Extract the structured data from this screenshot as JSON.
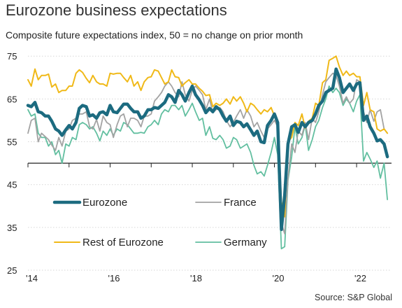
{
  "header": {
    "title": "Eurozone business expectations",
    "subtitle": "Composite future expectations index, 50 = no change on prior month",
    "source": "Source: S&P Global"
  },
  "chart_data": {
    "type": "line",
    "title": "Eurozone business expectations",
    "subtitle": "Composite future expectations index, 50 = no change on prior month",
    "xlabel": "",
    "ylabel": "",
    "x_tick_labels": [
      "'14",
      "'16",
      "'18",
      "'20",
      "'22"
    ],
    "x_tick_years": [
      2014,
      2016,
      2018,
      2020,
      2022
    ],
    "y_tick_labels": [
      "25",
      "35",
      "45",
      "55",
      "65",
      "75"
    ],
    "y_ticks": [
      25,
      35,
      45,
      55,
      65,
      75
    ],
    "ylim": [
      25,
      77
    ],
    "xlim": [
      2014.0,
      2022.85
    ],
    "baseline": 50,
    "grid": "horizontal dotted",
    "legend_position": "lower-left inside plot",
    "series": [
      {
        "name": "Eurozone",
        "color": "#1c6b80",
        "width": 4.5,
        "x": [
          2014.0,
          2014.08,
          2014.17,
          2014.25,
          2014.33,
          2014.42,
          2014.5,
          2014.58,
          2014.67,
          2014.75,
          2014.83,
          2014.92,
          2015.0,
          2015.08,
          2015.17,
          2015.25,
          2015.33,
          2015.42,
          2015.5,
          2015.58,
          2015.67,
          2015.75,
          2015.83,
          2015.92,
          2016.0,
          2016.08,
          2016.17,
          2016.25,
          2016.33,
          2016.42,
          2016.5,
          2016.58,
          2016.67,
          2016.75,
          2016.83,
          2016.92,
          2017.0,
          2017.08,
          2017.17,
          2017.25,
          2017.33,
          2017.42,
          2017.5,
          2017.58,
          2017.67,
          2017.75,
          2017.83,
          2017.92,
          2018.0,
          2018.08,
          2018.17,
          2018.25,
          2018.33,
          2018.42,
          2018.5,
          2018.58,
          2018.67,
          2018.75,
          2018.83,
          2018.92,
          2019.0,
          2019.08,
          2019.17,
          2019.25,
          2019.33,
          2019.42,
          2019.5,
          2019.58,
          2019.67,
          2019.75,
          2019.83,
          2019.92,
          2020.0,
          2020.08,
          2020.17,
          2020.25,
          2020.33,
          2020.42,
          2020.5,
          2020.58,
          2020.67,
          2020.75,
          2020.83,
          2020.92,
          2021.0,
          2021.08,
          2021.17,
          2021.25,
          2021.33,
          2021.42,
          2021.5,
          2021.58,
          2021.67,
          2021.75,
          2021.83,
          2021.92,
          2022.0,
          2022.08,
          2022.17,
          2022.25,
          2022.33,
          2022.42,
          2022.5,
          2022.58,
          2022.67,
          2022.75
        ],
        "values": [
          63.5,
          63.2,
          64.2,
          62.0,
          61.8,
          61.0,
          61.0,
          59.8,
          58.0,
          57.5,
          56.5,
          57.8,
          58.8,
          58.0,
          59.5,
          62.8,
          63.5,
          63.2,
          61.0,
          61.3,
          60.5,
          61.8,
          62.0,
          61.3,
          63.5,
          62.0,
          61.8,
          62.8,
          63.8,
          63.8,
          62.8,
          62.0,
          62.0,
          60.5,
          61.0,
          62.5,
          62.5,
          63.0,
          62.8,
          63.5,
          64.2,
          66.0,
          65.5,
          64.2,
          67.0,
          66.0,
          64.5,
          66.5,
          68.0,
          66.0,
          64.8,
          63.5,
          61.8,
          62.8,
          62.0,
          63.2,
          62.5,
          61.0,
          59.8,
          61.0,
          58.8,
          59.8,
          59.5,
          58.5,
          59.2,
          57.8,
          56.5,
          57.5,
          55.0,
          54.8,
          58.8,
          60.0,
          61.5,
          59.5,
          34.5,
          42.5,
          54.5,
          58.5,
          59.0,
          57.2,
          59.5,
          58.5,
          59.5,
          60.0,
          61.5,
          63.5,
          64.5,
          66.5,
          67.0,
          67.5,
          72.0,
          70.0,
          66.5,
          67.5,
          68.5,
          67.0,
          68.5,
          68.8,
          60.0,
          61.0,
          58.5,
          57.0,
          55.2,
          55.5,
          54.5,
          51.5
        ]
      },
      {
        "name": "France",
        "color": "#a3a3a3",
        "width": 1.8,
        "x": [
          2014.0,
          2014.08,
          2014.17,
          2014.25,
          2014.33,
          2014.42,
          2014.5,
          2014.58,
          2014.67,
          2014.75,
          2014.83,
          2014.92,
          2015.0,
          2015.08,
          2015.17,
          2015.25,
          2015.33,
          2015.42,
          2015.5,
          2015.58,
          2015.67,
          2015.75,
          2015.83,
          2015.92,
          2016.0,
          2016.08,
          2016.17,
          2016.25,
          2016.33,
          2016.42,
          2016.5,
          2016.58,
          2016.67,
          2016.75,
          2016.83,
          2016.92,
          2017.0,
          2017.08,
          2017.17,
          2017.25,
          2017.33,
          2017.42,
          2017.5,
          2017.58,
          2017.67,
          2017.75,
          2017.83,
          2017.92,
          2018.0,
          2018.08,
          2018.17,
          2018.25,
          2018.33,
          2018.42,
          2018.5,
          2018.58,
          2018.67,
          2018.75,
          2018.83,
          2018.92,
          2019.0,
          2019.08,
          2019.17,
          2019.25,
          2019.33,
          2019.42,
          2019.5,
          2019.58,
          2019.67,
          2019.75,
          2019.83,
          2019.92,
          2020.0,
          2020.08,
          2020.17,
          2020.25,
          2020.33,
          2020.42,
          2020.5,
          2020.58,
          2020.67,
          2020.75,
          2020.83,
          2020.92,
          2021.0,
          2021.08,
          2021.17,
          2021.25,
          2021.33,
          2021.42,
          2021.5,
          2021.58,
          2021.67,
          2021.75,
          2021.83,
          2021.92,
          2022.0,
          2022.08,
          2022.17,
          2022.25,
          2022.33,
          2022.42,
          2022.5,
          2022.58,
          2022.67,
          2022.75
        ],
        "values": [
          57.0,
          60.0,
          60.5,
          55.0,
          57.0,
          56.2,
          55.5,
          54.2,
          53.0,
          56.0,
          54.0,
          57.5,
          58.0,
          60.0,
          60.5,
          61.5,
          61.5,
          62.0,
          58.5,
          58.0,
          60.2,
          57.5,
          61.0,
          59.5,
          59.0,
          56.0,
          59.0,
          61.0,
          61.5,
          58.5,
          60.5,
          60.5,
          60.0,
          58.5,
          61.0,
          61.0,
          61.5,
          64.5,
          65.5,
          66.5,
          68.0,
          69.0,
          68.0,
          66.5,
          65.5,
          69.0,
          66.0,
          64.5,
          67.0,
          68.0,
          67.0,
          66.0,
          62.5,
          65.0,
          61.8,
          62.5,
          63.0,
          62.0,
          60.0,
          58.5,
          59.5,
          61.0,
          62.5,
          60.5,
          62.5,
          61.0,
          58.5,
          59.5,
          57.5,
          56.0,
          58.0,
          59.0,
          60.0,
          58.5,
          36.0,
          33.5,
          46.5,
          54.5,
          52.5,
          57.5,
          56.5,
          59.5,
          55.5,
          60.5,
          59.5,
          62.0,
          66.0,
          69.0,
          70.0,
          71.0,
          70.5,
          68.0,
          64.0,
          65.5,
          64.0,
          65.0,
          69.5,
          69.0,
          62.0,
          59.5,
          62.5,
          59.8,
          62.0,
          62.5,
          58.0,
          57.0
        ]
      },
      {
        "name": "Rest of Eurozone",
        "color": "#f0b918",
        "width": 2.0,
        "x": [
          2014.0,
          2014.08,
          2014.17,
          2014.25,
          2014.33,
          2014.42,
          2014.5,
          2014.58,
          2014.67,
          2014.75,
          2014.83,
          2014.92,
          2015.0,
          2015.08,
          2015.17,
          2015.25,
          2015.33,
          2015.42,
          2015.5,
          2015.58,
          2015.67,
          2015.75,
          2015.83,
          2015.92,
          2016.0,
          2016.08,
          2016.17,
          2016.25,
          2016.33,
          2016.42,
          2016.5,
          2016.58,
          2016.67,
          2016.75,
          2016.83,
          2016.92,
          2017.0,
          2017.08,
          2017.17,
          2017.25,
          2017.33,
          2017.42,
          2017.5,
          2017.58,
          2017.67,
          2017.75,
          2017.83,
          2017.92,
          2018.0,
          2018.08,
          2018.17,
          2018.25,
          2018.33,
          2018.42,
          2018.5,
          2018.58,
          2018.67,
          2018.75,
          2018.83,
          2018.92,
          2019.0,
          2019.08,
          2019.17,
          2019.25,
          2019.33,
          2019.42,
          2019.5,
          2019.58,
          2019.67,
          2019.75,
          2019.83,
          2019.92,
          2020.0,
          2020.08,
          2020.17,
          2020.25,
          2020.33,
          2020.42,
          2020.5,
          2020.58,
          2020.67,
          2020.75,
          2020.83,
          2020.92,
          2021.0,
          2021.08,
          2021.17,
          2021.25,
          2021.33,
          2021.42,
          2021.5,
          2021.58,
          2021.67,
          2021.75,
          2021.83,
          2021.92,
          2022.0,
          2022.08,
          2022.17,
          2022.25,
          2022.33,
          2022.42,
          2022.5,
          2022.58,
          2022.67,
          2022.75
        ],
        "values": [
          69.5,
          68.0,
          72.0,
          69.5,
          70.5,
          70.5,
          70.8,
          67.8,
          68.5,
          66.5,
          67.0,
          67.0,
          68.0,
          68.0,
          71.0,
          71.8,
          71.2,
          69.8,
          68.8,
          70.5,
          69.0,
          68.5,
          68.5,
          68.0,
          71.0,
          70.8,
          71.0,
          71.0,
          70.0,
          69.0,
          70.5,
          68.0,
          69.0,
          67.0,
          69.0,
          70.0,
          70.2,
          71.8,
          71.5,
          70.0,
          68.5,
          69.0,
          71.8,
          70.2,
          70.0,
          68.0,
          68.8,
          69.5,
          68.5,
          68.5,
          67.5,
          66.8,
          65.8,
          66.0,
          63.2,
          64.0,
          63.5,
          64.0,
          65.0,
          63.8,
          65.5,
          64.5,
          65.5,
          64.0,
          62.0,
          64.0,
          63.5,
          62.5,
          61.5,
          62.5,
          62.0,
          63.0,
          61.0,
          59.0,
          41.0,
          37.5,
          55.0,
          56.0,
          59.5,
          58.8,
          61.5,
          58.2,
          59.8,
          60.5,
          64.0,
          63.5,
          68.8,
          69.5,
          74.0,
          74.5,
          75.0,
          72.5,
          70.5,
          71.5,
          70.5,
          71.0,
          70.2,
          70.2,
          63.5,
          66.5,
          62.5,
          62.0,
          58.0,
          57.5,
          58.0,
          57.0
        ]
      },
      {
        "name": "Germany",
        "color": "#62bfa0",
        "width": 1.8,
        "x": [
          2014.0,
          2014.08,
          2014.17,
          2014.25,
          2014.33,
          2014.42,
          2014.5,
          2014.58,
          2014.67,
          2014.75,
          2014.83,
          2014.92,
          2015.0,
          2015.08,
          2015.17,
          2015.25,
          2015.33,
          2015.42,
          2015.5,
          2015.58,
          2015.67,
          2015.75,
          2015.83,
          2015.92,
          2016.0,
          2016.08,
          2016.17,
          2016.25,
          2016.33,
          2016.42,
          2016.5,
          2016.58,
          2016.67,
          2016.75,
          2016.83,
          2016.92,
          2017.0,
          2017.08,
          2017.17,
          2017.25,
          2017.33,
          2017.42,
          2017.5,
          2017.58,
          2017.67,
          2017.75,
          2017.83,
          2017.92,
          2018.0,
          2018.08,
          2018.17,
          2018.25,
          2018.33,
          2018.42,
          2018.5,
          2018.58,
          2018.67,
          2018.75,
          2018.83,
          2018.92,
          2019.0,
          2019.08,
          2019.17,
          2019.25,
          2019.33,
          2019.42,
          2019.5,
          2019.58,
          2019.67,
          2019.75,
          2019.83,
          2019.92,
          2020.0,
          2020.08,
          2020.17,
          2020.25,
          2020.33,
          2020.42,
          2020.5,
          2020.58,
          2020.67,
          2020.75,
          2020.83,
          2020.92,
          2021.0,
          2021.08,
          2021.17,
          2021.25,
          2021.33,
          2021.42,
          2021.5,
          2021.58,
          2021.67,
          2021.75,
          2021.83,
          2021.92,
          2022.0,
          2022.08,
          2022.17,
          2022.25,
          2022.33,
          2022.42,
          2022.5,
          2022.58,
          2022.67,
          2022.75
        ],
        "values": [
          62.5,
          61.0,
          61.5,
          57.0,
          56.0,
          56.0,
          54.0,
          55.0,
          52.0,
          53.0,
          50.0,
          54.5,
          54.0,
          56.0,
          55.5,
          59.0,
          59.5,
          59.0,
          58.0,
          58.5,
          57.0,
          55.2,
          57.5,
          56.5,
          58.0,
          56.5,
          58.0,
          57.5,
          59.5,
          59.0,
          58.0,
          57.0,
          57.0,
          57.2,
          57.0,
          58.5,
          59.0,
          60.0,
          59.0,
          61.5,
          62.5,
          62.0,
          63.5,
          63.5,
          62.5,
          63.5,
          61.0,
          62.5,
          64.0,
          62.0,
          60.0,
          60.5,
          56.5,
          58.5,
          55.8,
          55.5,
          56.5,
          55.5,
          53.5,
          54.0,
          56.0,
          55.5,
          53.5,
          54.0,
          54.5,
          52.5,
          49.5,
          47.5,
          48.0,
          47.0,
          49.5,
          52.5,
          56.0,
          52.0,
          30.0,
          30.5,
          46.0,
          51.5,
          58.5,
          54.5,
          56.0,
          59.0,
          53.0,
          55.5,
          58.5,
          60.0,
          63.0,
          65.0,
          68.0,
          66.5,
          67.5,
          66.5,
          63.5,
          65.0,
          64.0,
          62.0,
          64.5,
          66.0,
          50.5,
          52.5,
          51.0,
          49.0,
          50.5,
          46.5,
          50.0,
          41.5
        ]
      }
    ]
  }
}
